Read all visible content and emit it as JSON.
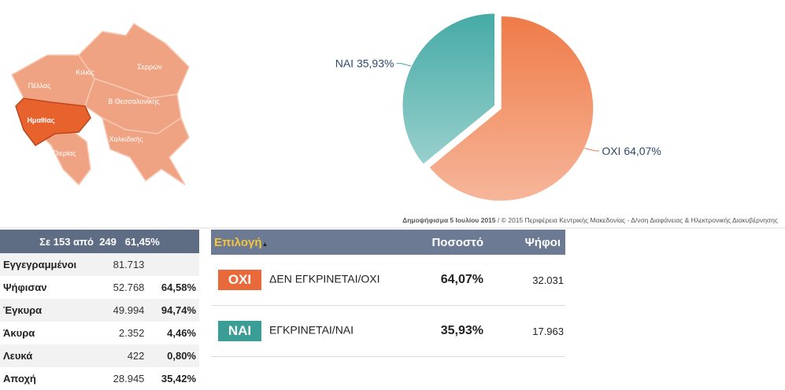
{
  "chart_data": {
    "type": "pie",
    "categories": [
      "ΝΑΙ",
      "ΟΧΙ"
    ],
    "values": [
      35.93,
      64.07
    ],
    "value_labels": [
      "35,93%",
      "64,07%"
    ],
    "colors": [
      "#45aaa5",
      "#ef7b48"
    ]
  },
  "map": {
    "regions": [
      "Κιλκίς",
      "Σερρών",
      "Πέλλας",
      "Β Θεσσαλονίκης",
      "Ημαθίας",
      "Χαλκιδικής",
      "Πιερίας"
    ]
  },
  "source": {
    "event": "Δημοψήφισμα 5 Ιουλίου 2015",
    "credit": "/ © 2015 Περιφέρεια Κεντρικής Μακεδονίας - Δ/νση Διαφάνειας & Ηλεκτρονικής Διακυβέρνησης"
  },
  "summary": {
    "header": [
      "Σε 153 από",
      "249",
      "61,45%"
    ],
    "rows": [
      {
        "label": "Εγγεγραμμένοι",
        "count": "81.713"
      },
      {
        "label": "Ψήφισαν",
        "count": "52.768",
        "percent": "64,58%"
      },
      {
        "label": "Έγκυρα",
        "count": "49.994",
        "percent": "94,74%"
      },
      {
        "label": "Άκυρα",
        "count": "2.352",
        "percent": "4,46%"
      },
      {
        "label": "Λευκά",
        "count": "422",
        "percent": "0,80%"
      },
      {
        "label": "Αποχή",
        "count": "28.945",
        "percent": "35,42%"
      }
    ]
  },
  "results": {
    "header": [
      "Επιλογή",
      "Ποσοστό",
      "Ψήφοι"
    ],
    "rows": [
      {
        "badge": "ΟΧΙ",
        "choice": "ΔΕΝ ΕΓΚΡΙΝΕΤΑΙ/ΟΧΙ",
        "percent": "64,07%",
        "votes": "32.031"
      },
      {
        "badge": "ΝΑΙ",
        "choice": "ΕΓΚΡΙΝΕΤΑΙ/ΝΑΙ",
        "percent": "35,93%",
        "votes": "17.963"
      }
    ]
  }
}
